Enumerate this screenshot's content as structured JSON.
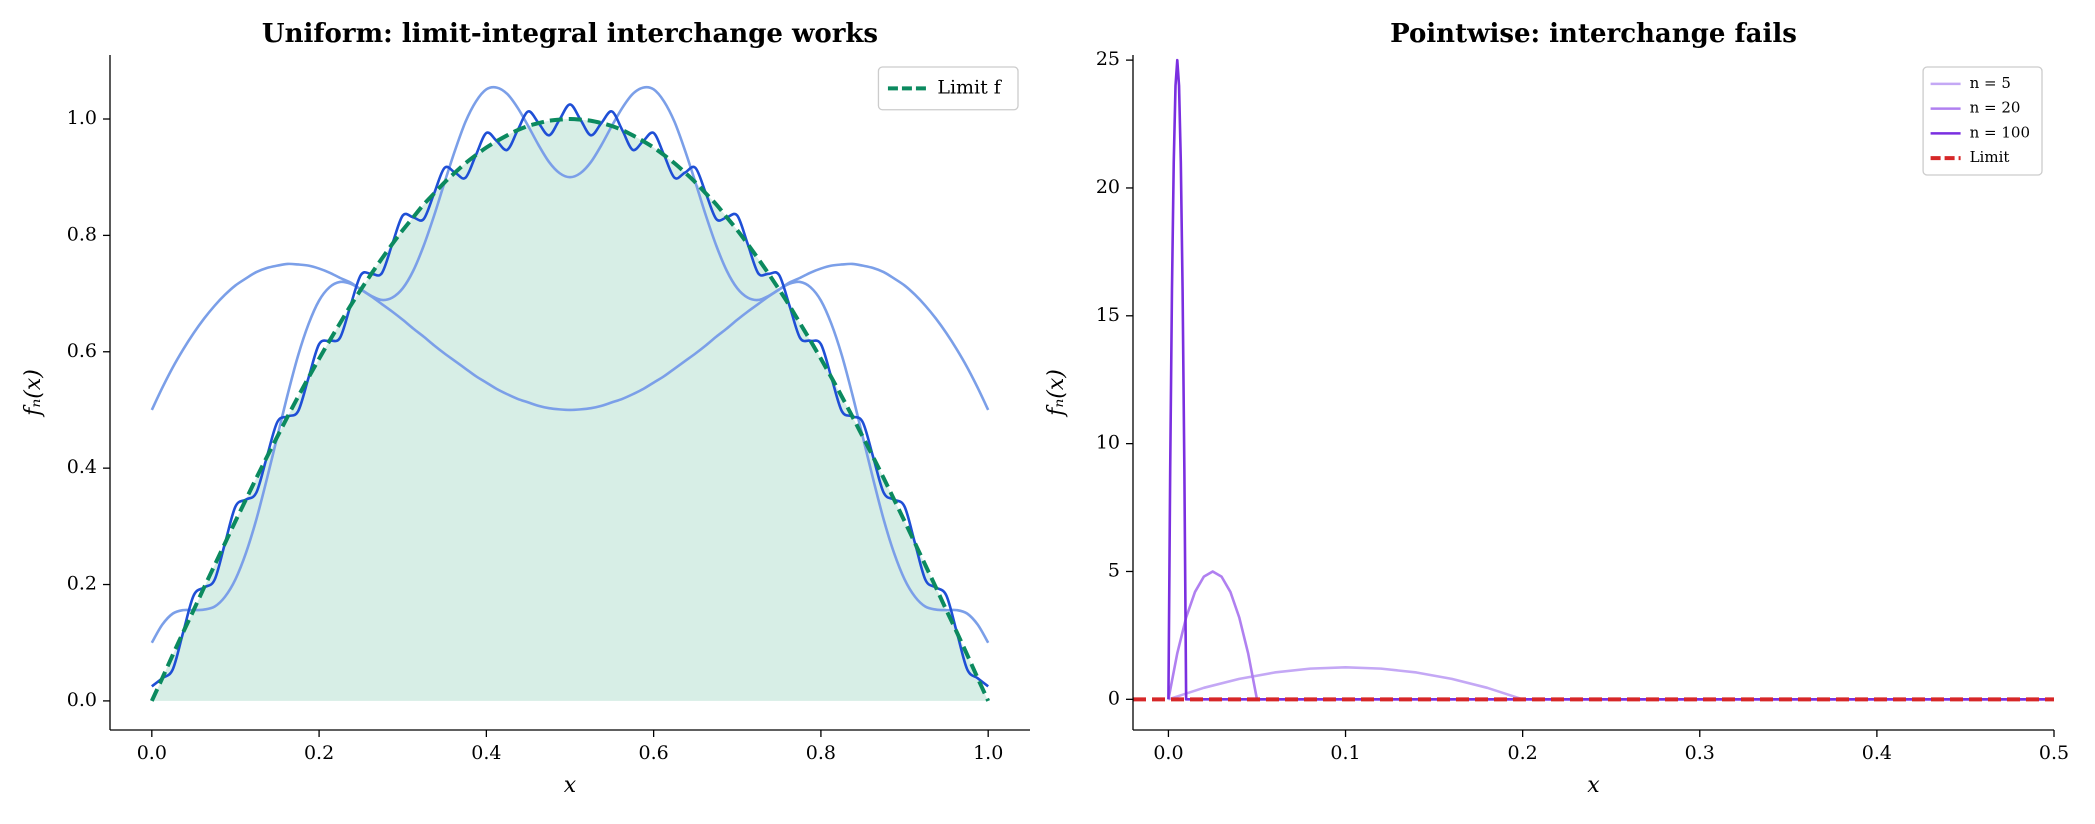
{
  "chart_data": [
    {
      "type": "line",
      "title": "Uniform: limit-integral interchange works",
      "xlabel": "x",
      "ylabel": "fₙ(x)",
      "xlim": [
        -0.05,
        1.05
      ],
      "ylim": [
        -0.05,
        1.11
      ],
      "xticks": [
        {
          "value": 0,
          "label": "0.0"
        },
        0.2,
        0.4,
        0.6,
        0.8,
        {
          "value": 1,
          "label": "1.0"
        }
      ],
      "yticks": [
        {
          "value": 0,
          "label": "0.0"
        },
        0.2,
        0.4,
        0.6,
        0.8,
        {
          "value": 1,
          "label": "1.0"
        }
      ],
      "legend": "upper right",
      "smooth": true,
      "x": [
        0,
        0.0125,
        0.025,
        0.0375,
        0.05,
        0.0625,
        0.075,
        0.0875,
        0.1,
        0.1125,
        0.125,
        0.1375,
        0.15,
        0.1625,
        0.175,
        0.1875,
        0.2,
        0.2125,
        0.225,
        0.2375,
        0.25,
        0.2625,
        0.275,
        0.2875,
        0.3,
        0.3125,
        0.325,
        0.3375,
        0.35,
        0.3625,
        0.375,
        0.3875,
        0.4,
        0.4125,
        0.425,
        0.4375,
        0.45,
        0.4625,
        0.475,
        0.4875,
        0.5,
        0.5125,
        0.525,
        0.5375,
        0.55,
        0.5625,
        0.575,
        0.5875,
        0.6,
        0.6125,
        0.625,
        0.6375,
        0.65,
        0.6625,
        0.675,
        0.6875,
        0.7,
        0.7125,
        0.725,
        0.7375,
        0.75,
        0.7625,
        0.775,
        0.7875,
        0.8,
        0.8125,
        0.825,
        0.8375,
        0.85,
        0.8625,
        0.875,
        0.8875,
        0.9,
        0.9125,
        0.925,
        0.9375,
        0.95,
        0.9625,
        0.975,
        0.9875,
        1
      ],
      "series": [
        {
          "color": "#7b9fe8",
          "values": [
            0.5,
            0.538,
            0.573,
            0.604,
            0.632,
            0.657,
            0.679,
            0.698,
            0.714,
            0.726,
            0.737,
            0.744,
            0.748,
            0.751,
            0.75,
            0.748,
            0.743,
            0.736,
            0.727,
            0.719,
            0.707,
            0.695,
            0.682,
            0.669,
            0.655,
            0.64,
            0.626,
            0.611,
            0.597,
            0.584,
            0.571,
            0.558,
            0.547,
            0.536,
            0.527,
            0.519,
            0.513,
            0.507,
            0.503,
            0.501,
            0.5,
            0.501,
            0.503,
            0.507,
            0.513,
            0.519,
            0.527,
            0.536,
            0.547,
            0.558,
            0.571,
            0.584,
            0.597,
            0.611,
            0.626,
            0.64,
            0.655,
            0.669,
            0.682,
            0.695,
            0.707,
            0.719,
            0.727,
            0.736,
            0.743,
            0.748,
            0.75,
            0.751,
            0.748,
            0.744,
            0.737,
            0.726,
            0.714,
            0.698,
            0.679,
            0.657,
            0.632,
            0.604,
            0.573,
            0.538,
            0.5
          ]
        },
        {
          "color": "#7b9fe8",
          "values": [
            0.1,
            0.131,
            0.15,
            0.156,
            0.156,
            0.157,
            0.162,
            0.179,
            0.209,
            0.254,
            0.312,
            0.381,
            0.454,
            0.527,
            0.594,
            0.648,
            0.688,
            0.711,
            0.72,
            0.717,
            0.707,
            0.696,
            0.689,
            0.693,
            0.709,
            0.739,
            0.782,
            0.834,
            0.891,
            0.946,
            0.995,
            1.03,
            1.051,
            1.054,
            1.043,
            1.019,
            0.988,
            0.955,
            0.926,
            0.907,
            0.9,
            0.907,
            0.926,
            0.955,
            0.988,
            1.019,
            1.043,
            1.054,
            1.051,
            1.03,
            0.995,
            0.946,
            0.891,
            0.834,
            0.782,
            0.739,
            0.709,
            0.693,
            0.689,
            0.696,
            0.707,
            0.717,
            0.72,
            0.711,
            0.688,
            0.648,
            0.594,
            0.527,
            0.454,
            0.381,
            0.312,
            0.254,
            0.209,
            0.179,
            0.162,
            0.157,
            0.156,
            0.156,
            0.15,
            0.131,
            0.1
          ]
        },
        {
          "color": "#1f4fd6",
          "values": [
            0.025,
            0.039,
            0.054,
            0.118,
            0.181,
            0.195,
            0.208,
            0.271,
            0.334,
            0.346,
            0.358,
            0.419,
            0.479,
            0.489,
            0.498,
            0.556,
            0.613,
            0.619,
            0.624,
            0.679,
            0.732,
            0.734,
            0.735,
            0.785,
            0.834,
            0.831,
            0.828,
            0.872,
            0.916,
            0.908,
            0.899,
            0.938,
            0.976,
            0.962,
            0.947,
            0.981,
            1.013,
            0.993,
            0.972,
            0.999,
            1.025,
            0.999,
            0.972,
            0.993,
            1.013,
            0.981,
            0.947,
            0.962,
            0.976,
            0.938,
            0.899,
            0.908,
            0.916,
            0.872,
            0.828,
            0.831,
            0.834,
            0.785,
            0.735,
            0.734,
            0.732,
            0.679,
            0.624,
            0.619,
            0.613,
            0.556,
            0.498,
            0.489,
            0.479,
            0.419,
            0.358,
            0.346,
            0.334,
            0.271,
            0.208,
            0.195,
            0.181,
            0.118,
            0.054,
            0.039,
            0.025
          ]
        },
        {
          "name": "Limit f",
          "color": "#0b8a5f",
          "dashed": true,
          "fill": "#d7eee6",
          "values": [
            0,
            0.039,
            0.079,
            0.118,
            0.156,
            0.195,
            0.233,
            0.271,
            0.309,
            0.346,
            0.383,
            0.419,
            0.454,
            0.489,
            0.523,
            0.556,
            0.588,
            0.619,
            0.649,
            0.679,
            0.707,
            0.734,
            0.76,
            0.785,
            0.809,
            0.831,
            0.853,
            0.872,
            0.891,
            0.908,
            0.924,
            0.938,
            0.951,
            0.962,
            0.972,
            0.981,
            0.988,
            0.993,
            0.997,
            0.999,
            1,
            0.999,
            0.997,
            0.993,
            0.988,
            0.981,
            0.972,
            0.962,
            0.951,
            0.938,
            0.924,
            0.908,
            0.891,
            0.872,
            0.853,
            0.831,
            0.809,
            0.785,
            0.76,
            0.734,
            0.707,
            0.679,
            0.649,
            0.619,
            0.588,
            0.556,
            0.523,
            0.489,
            0.454,
            0.419,
            0.383,
            0.346,
            0.309,
            0.271,
            0.233,
            0.195,
            0.156,
            0.118,
            0.079,
            0.039,
            0
          ]
        }
      ]
    },
    {
      "type": "line",
      "title": "Pointwise: interchange fails",
      "xlabel": "x",
      "ylabel": "fₙ(x)",
      "xlim": [
        -0.02,
        0.5
      ],
      "ylim": [
        -1.2,
        25.2
      ],
      "xticks": [
        {
          "value": 0,
          "label": "0.0"
        },
        0.1,
        0.2,
        0.3,
        0.4,
        0.5
      ],
      "yticks": [
        0,
        5,
        10,
        15,
        20,
        25
      ],
      "legend": "upper right",
      "smooth": false,
      "series": [
        {
          "name": "n = 5",
          "color": "#c4a8f5",
          "x": [
            0,
            0.02,
            0.04,
            0.06,
            0.08,
            0.1,
            0.12,
            0.14,
            0.16,
            0.18,
            0.2,
            0.5
          ],
          "values": [
            0,
            0.45,
            0.8,
            1.05,
            1.2,
            1.25,
            1.2,
            1.05,
            0.8,
            0.45,
            0,
            0
          ]
        },
        {
          "name": "n = 20",
          "color": "#b080f0",
          "x": [
            0,
            0.005,
            0.01,
            0.015,
            0.02,
            0.025,
            0.03,
            0.035,
            0.04,
            0.045,
            0.05,
            0.5
          ],
          "values": [
            0,
            1.8,
            3.2,
            4.2,
            4.8,
            5,
            4.8,
            4.2,
            3.2,
            1.8,
            0,
            0
          ]
        },
        {
          "name": "n = 100",
          "color": "#7a2fe0",
          "x": [
            0,
            0.001,
            0.002,
            0.003,
            0.004,
            0.005,
            0.006,
            0.007,
            0.008,
            0.009,
            0.01,
            0.5
          ],
          "values": [
            0,
            9,
            16,
            21,
            24,
            25,
            24,
            21,
            16,
            9,
            0,
            0
          ]
        },
        {
          "name": "Limit",
          "color": "#d62728",
          "dashed": true,
          "x": [
            -0.02,
            0.5
          ],
          "values": [
            0,
            0
          ]
        }
      ]
    }
  ]
}
